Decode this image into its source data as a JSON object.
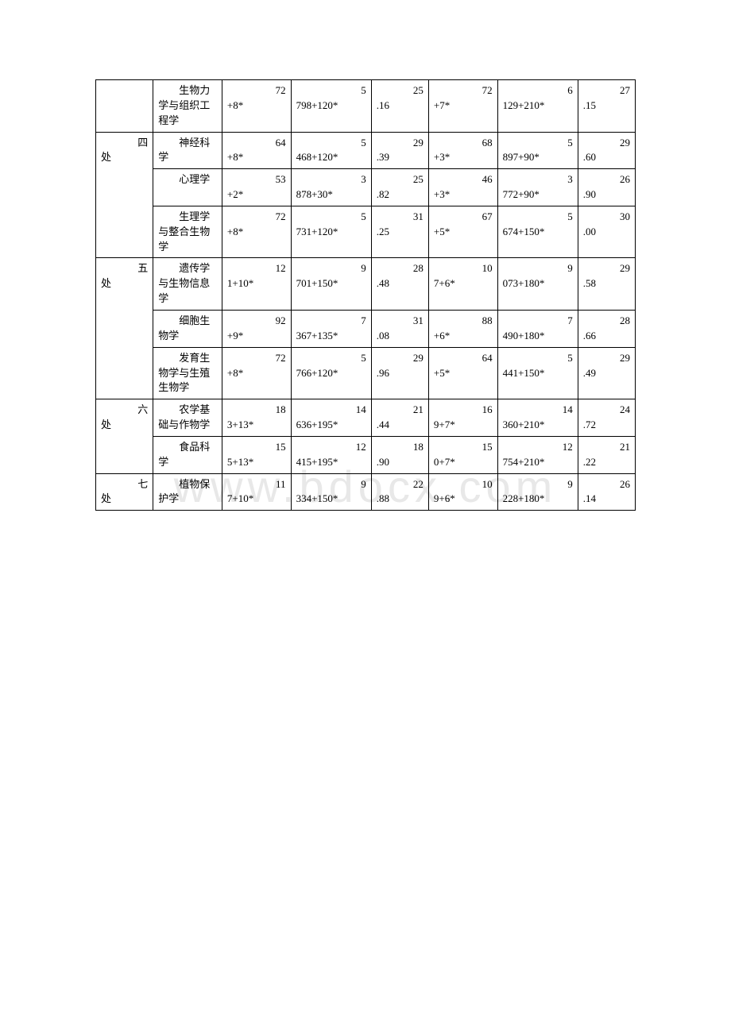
{
  "watermark": "www.bdocx.com",
  "table": {
    "columns": [
      "col0",
      "col1",
      "col2",
      "col3",
      "col4",
      "col5",
      "col6",
      "col7"
    ],
    "border_color": "#000000",
    "background": "#ffffff",
    "font_size": 13,
    "rows": [
      {
        "dept": "",
        "dept_span": 1,
        "subject": "生物力学与组织工程学",
        "c2_top": "72",
        "c2_bot": "+8*",
        "c3_top": "5",
        "c3_bot": "798+120*",
        "c4_top": "25",
        "c4_bot": ".16",
        "c5_top": "72",
        "c5_bot": "+7*",
        "c6_top": "6",
        "c6_bot": "129+210*",
        "c7_top": "27",
        "c7_bot": ".15"
      },
      {
        "dept": "四处",
        "dept_span": 3,
        "subject": "神经科学",
        "c2_top": "64",
        "c2_bot": "+8*",
        "c3_top": "5",
        "c3_bot": "468+120*",
        "c4_top": "29",
        "c4_bot": ".39",
        "c5_top": "68",
        "c5_bot": "+3*",
        "c6_top": "5",
        "c6_bot": "897+90*",
        "c7_top": "29",
        "c7_bot": ".60"
      },
      {
        "subject": "心理学",
        "c2_top": "53",
        "c2_bot": "+2*",
        "c3_top": "3",
        "c3_bot": "878+30*",
        "c4_top": "25",
        "c4_bot": ".82",
        "c5_top": "46",
        "c5_bot": "+3*",
        "c6_top": "3",
        "c6_bot": "772+90*",
        "c7_top": "26",
        "c7_bot": ".90"
      },
      {
        "subject": "生理学与整合生物学",
        "c2_top": "72",
        "c2_bot": "+8*",
        "c3_top": "5",
        "c3_bot": "731+120*",
        "c4_top": "31",
        "c4_bot": ".25",
        "c5_top": "67",
        "c5_bot": "+5*",
        "c6_top": "5",
        "c6_bot": "674+150*",
        "c7_top": "30",
        "c7_bot": ".00"
      },
      {
        "dept": "五处",
        "dept_span": 3,
        "subject": "遗传学与生物信息学",
        "c2_top": "12",
        "c2_bot": "1+10*",
        "c3_top": "9",
        "c3_bot": "701+150*",
        "c4_top": "28",
        "c4_bot": ".48",
        "c5_top": "10",
        "c5_bot": "7+6*",
        "c6_top": "9",
        "c6_bot": "073+180*",
        "c7_top": "29",
        "c7_bot": ".58"
      },
      {
        "subject": "细胞生物学",
        "c2_top": "92",
        "c2_bot": "+9*",
        "c3_top": "7",
        "c3_bot": "367+135*",
        "c4_top": "31",
        "c4_bot": ".08",
        "c5_top": "88",
        "c5_bot": "+6*",
        "c6_top": "7",
        "c6_bot": "490+180*",
        "c7_top": "28",
        "c7_bot": ".66"
      },
      {
        "subject": "发育生物学与生殖生物学",
        "c2_top": "72",
        "c2_bot": "+8*",
        "c3_top": "5",
        "c3_bot": "766+120*",
        "c4_top": "29",
        "c4_bot": ".96",
        "c5_top": "64",
        "c5_bot": "+5*",
        "c6_top": "5",
        "c6_bot": "441+150*",
        "c7_top": "29",
        "c7_bot": ".49"
      },
      {
        "dept": "六处",
        "dept_span": 2,
        "subject": "农学基础与作物学",
        "c2_top": "18",
        "c2_bot": "3+13*",
        "c3_top": "14",
        "c3_bot": "636+195*",
        "c4_top": "21",
        "c4_bot": ".44",
        "c5_top": "16",
        "c5_bot": "9+7*",
        "c6_top": "14",
        "c6_bot": "360+210*",
        "c7_top": "24",
        "c7_bot": ".72"
      },
      {
        "subject": "食品科学",
        "c2_top": "15",
        "c2_bot": "5+13*",
        "c3_top": "12",
        "c3_bot": "415+195*",
        "c4_top": "18",
        "c4_bot": ".90",
        "c5_top": "15",
        "c5_bot": "0+7*",
        "c6_top": "12",
        "c6_bot": "754+210*",
        "c7_top": "21",
        "c7_bot": ".22"
      },
      {
        "dept": "七处",
        "dept_span": 1,
        "subject": "植物保护学",
        "c2_top": "11",
        "c2_bot": "7+10*",
        "c3_top": "9",
        "c3_bot": "334+150*",
        "c4_top": "22",
        "c4_bot": ".88",
        "c5_top": "10",
        "c5_bot": "9+6*",
        "c6_top": "9",
        "c6_bot": "228+180*",
        "c7_top": "26",
        "c7_bot": ".14"
      }
    ]
  }
}
